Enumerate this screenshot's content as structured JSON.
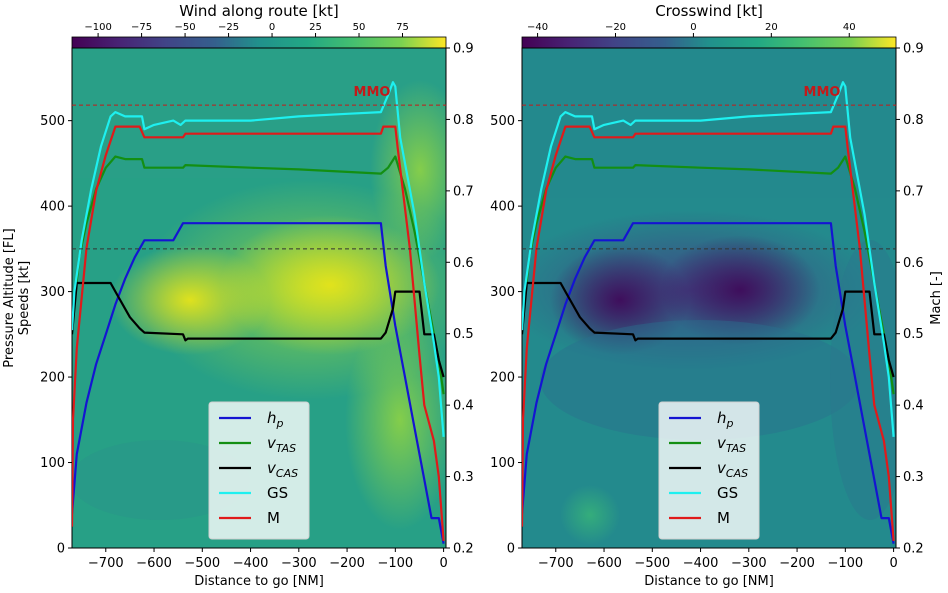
{
  "figure": {
    "y_left_label_1": "Pressure Altitude [FL]",
    "y_left_label_2": "Speeds [kt]",
    "y_right_label": "Mach [-]",
    "mmo_label": "MMO"
  },
  "chart_data": [
    {
      "type": "line",
      "title": "Wind along route [kt]",
      "xlabel": "Distance to go [NM]",
      "ylabel": "Pressure Altitude [FL] / Speeds [kt]",
      "y2label": "Mach [-]",
      "xlim": [
        -770,
        5
      ],
      "ylim": [
        0,
        585
      ],
      "y2lim": [
        0.2,
        0.9
      ],
      "x_ticks": [
        -700,
        -600,
        -500,
        -400,
        -300,
        -200,
        -100,
        0
      ],
      "y_ticks": [
        0,
        100,
        200,
        300,
        400,
        500
      ],
      "y2_ticks": [
        0.2,
        0.3,
        0.4,
        0.5,
        0.6,
        0.7,
        0.8,
        0.9
      ],
      "colorbar": {
        "label": "Wind along route [kt]",
        "range": [
          -115,
          100
        ],
        "ticks": [
          -100,
          -75,
          -50,
          -25,
          0,
          25,
          50,
          75
        ],
        "colormap": "viridis"
      },
      "reference_lines": [
        {
          "name": "MMO",
          "mach": 0.82,
          "color": "#c41a1a",
          "style": "dashed"
        },
        {
          "name": "",
          "altitude": 350,
          "color": "#333333",
          "style": "dashed"
        }
      ],
      "legend": {
        "position": "bottom-center",
        "entries": [
          "h_p",
          "v_TAS",
          "v_CAS",
          "GS",
          "M"
        ]
      },
      "series": [
        {
          "name": "h_p",
          "color": "#1414d2",
          "x": [
            -770,
            -760,
            -740,
            -720,
            -700,
            -680,
            -660,
            -640,
            -620,
            -600,
            -560,
            -540,
            -500,
            -400,
            -300,
            -200,
            -130,
            -120,
            -100,
            -80,
            -60,
            -40,
            -25,
            -10,
            0
          ],
          "y": [
            40,
            110,
            170,
            215,
            250,
            285,
            315,
            340,
            360,
            360,
            360,
            380,
            380,
            380,
            380,
            380,
            380,
            330,
            260,
            200,
            140,
            80,
            35,
            35,
            5
          ]
        },
        {
          "name": "v_TAS",
          "color": "#138f13",
          "x": [
            -770,
            -765,
            -755,
            -740,
            -720,
            -700,
            -680,
            -660,
            -625,
            -620,
            -540,
            -535,
            -400,
            -300,
            -130,
            -115,
            -100,
            -80,
            -60,
            -40,
            -20,
            -10,
            0
          ],
          "y": [
            255,
            285,
            340,
            380,
            420,
            445,
            458,
            455,
            455,
            445,
            445,
            448,
            445,
            443,
            438,
            445,
            458,
            420,
            370,
            310,
            250,
            220,
            180
          ]
        },
        {
          "name": "v_CAS",
          "color": "#000000",
          "x": [
            -770,
            -760,
            -700,
            -690,
            -680,
            -650,
            -630,
            -620,
            -540,
            -535,
            -530,
            -400,
            -300,
            -200,
            -130,
            -120,
            -105,
            -100,
            -50,
            -40,
            -35,
            -20,
            -10,
            0
          ],
          "y": [
            250,
            310,
            310,
            310,
            300,
            270,
            257,
            252,
            250,
            243,
            245,
            245,
            245,
            245,
            245,
            252,
            280,
            300,
            300,
            250,
            250,
            250,
            220,
            200
          ]
        },
        {
          "name": "GS",
          "color": "#1ef0f0",
          "x": [
            -770,
            -765,
            -750,
            -730,
            -710,
            -690,
            -680,
            -660,
            -625,
            -620,
            -600,
            -560,
            -545,
            -535,
            -500,
            -400,
            -300,
            -200,
            -130,
            -115,
            -105,
            -100,
            -90,
            -60,
            -40,
            -20,
            -10,
            0
          ],
          "y": [
            255,
            300,
            360,
            420,
            470,
            505,
            510,
            505,
            505,
            490,
            495,
            500,
            495,
            500,
            500,
            500,
            505,
            508,
            510,
            530,
            545,
            540,
            480,
            390,
            310,
            240,
            200,
            130
          ]
        },
        {
          "name": "M",
          "color": "#e01a1a",
          "x": [
            -770,
            -768,
            -760,
            -740,
            -720,
            -700,
            -680,
            -630,
            -620,
            -540,
            -535,
            -400,
            -300,
            -200,
            -130,
            -125,
            -100,
            -95,
            -70,
            -50,
            -40,
            -20,
            -10,
            0
          ],
          "y": [
            0.23,
            0.38,
            0.48,
            0.62,
            0.7,
            0.75,
            0.79,
            0.79,
            0.775,
            0.775,
            0.78,
            0.78,
            0.78,
            0.78,
            0.78,
            0.79,
            0.79,
            0.76,
            0.62,
            0.47,
            0.4,
            0.35,
            0.3,
            0.21
          ]
        }
      ]
    },
    {
      "type": "line",
      "title": "Crosswind [kt]",
      "xlabel": "Distance to go [NM]",
      "ylabel": "Pressure Altitude [FL] / Speeds [kt]",
      "y2label": "Mach [-]",
      "xlim": [
        -770,
        5
      ],
      "ylim": [
        0,
        585
      ],
      "y2lim": [
        0.2,
        0.9
      ],
      "x_ticks": [
        -700,
        -600,
        -500,
        -400,
        -300,
        -200,
        -100,
        0
      ],
      "y_ticks": [
        0,
        100,
        200,
        300,
        400,
        500
      ],
      "y2_ticks": [
        0.2,
        0.3,
        0.4,
        0.5,
        0.6,
        0.7,
        0.8,
        0.9
      ],
      "colorbar": {
        "label": "Crosswind [kt]",
        "range": [
          -44,
          52
        ],
        "ticks": [
          -40,
          -20,
          0,
          20,
          40
        ],
        "colormap": "viridis"
      },
      "reference_lines": [
        {
          "name": "MMO",
          "mach": 0.82,
          "color": "#c41a1a",
          "style": "dashed"
        },
        {
          "name": "",
          "altitude": 350,
          "color": "#333333",
          "style": "dashed"
        }
      ],
      "legend": {
        "position": "bottom-center",
        "entries": [
          "h_p",
          "v_TAS",
          "v_CAS",
          "GS",
          "M"
        ]
      },
      "series": [
        {
          "name": "h_p",
          "color": "#1414d2",
          "x": [
            -770,
            -760,
            -740,
            -720,
            -700,
            -680,
            -660,
            -640,
            -620,
            -600,
            -560,
            -540,
            -500,
            -400,
            -300,
            -200,
            -130,
            -120,
            -100,
            -80,
            -60,
            -40,
            -25,
            -10,
            0
          ],
          "y": [
            40,
            110,
            170,
            215,
            250,
            285,
            315,
            340,
            360,
            360,
            360,
            380,
            380,
            380,
            380,
            380,
            380,
            330,
            260,
            200,
            140,
            80,
            35,
            35,
            5
          ]
        },
        {
          "name": "v_TAS",
          "color": "#138f13",
          "x": [
            -770,
            -765,
            -755,
            -740,
            -720,
            -700,
            -680,
            -660,
            -625,
            -620,
            -540,
            -535,
            -400,
            -300,
            -130,
            -115,
            -100,
            -80,
            -60,
            -40,
            -20,
            -10,
            0
          ],
          "y": [
            255,
            285,
            340,
            380,
            420,
            445,
            458,
            455,
            455,
            445,
            445,
            448,
            445,
            443,
            438,
            445,
            458,
            420,
            370,
            310,
            250,
            220,
            180
          ]
        },
        {
          "name": "v_CAS",
          "color": "#000000",
          "x": [
            -770,
            -760,
            -700,
            -690,
            -680,
            -650,
            -630,
            -620,
            -540,
            -535,
            -530,
            -400,
            -300,
            -200,
            -130,
            -120,
            -105,
            -100,
            -50,
            -40,
            -35,
            -20,
            -10,
            0
          ],
          "y": [
            250,
            310,
            310,
            310,
            300,
            270,
            257,
            252,
            250,
            243,
            245,
            245,
            245,
            245,
            245,
            252,
            280,
            300,
            300,
            250,
            250,
            250,
            220,
            200
          ]
        },
        {
          "name": "GS",
          "color": "#1ef0f0",
          "x": [
            -770,
            -765,
            -750,
            -730,
            -710,
            -690,
            -680,
            -660,
            -625,
            -620,
            -600,
            -560,
            -545,
            -535,
            -500,
            -400,
            -300,
            -200,
            -130,
            -115,
            -105,
            -100,
            -90,
            -60,
            -40,
            -20,
            -10,
            0
          ],
          "y": [
            255,
            300,
            360,
            420,
            470,
            505,
            510,
            505,
            505,
            490,
            495,
            500,
            495,
            500,
            500,
            500,
            505,
            508,
            510,
            530,
            545,
            540,
            480,
            390,
            310,
            240,
            200,
            130
          ]
        },
        {
          "name": "M",
          "color": "#e01a1a",
          "x": [
            -770,
            -768,
            -760,
            -740,
            -720,
            -700,
            -680,
            -630,
            -620,
            -540,
            -535,
            -400,
            -300,
            -200,
            -130,
            -125,
            -100,
            -95,
            -70,
            -50,
            -40,
            -20,
            -10,
            0
          ],
          "y": [
            0.23,
            0.38,
            0.48,
            0.62,
            0.7,
            0.75,
            0.79,
            0.79,
            0.775,
            0.775,
            0.78,
            0.78,
            0.78,
            0.78,
            0.78,
            0.79,
            0.79,
            0.76,
            0.62,
            0.47,
            0.4,
            0.35,
            0.3,
            0.21
          ]
        }
      ]
    }
  ]
}
